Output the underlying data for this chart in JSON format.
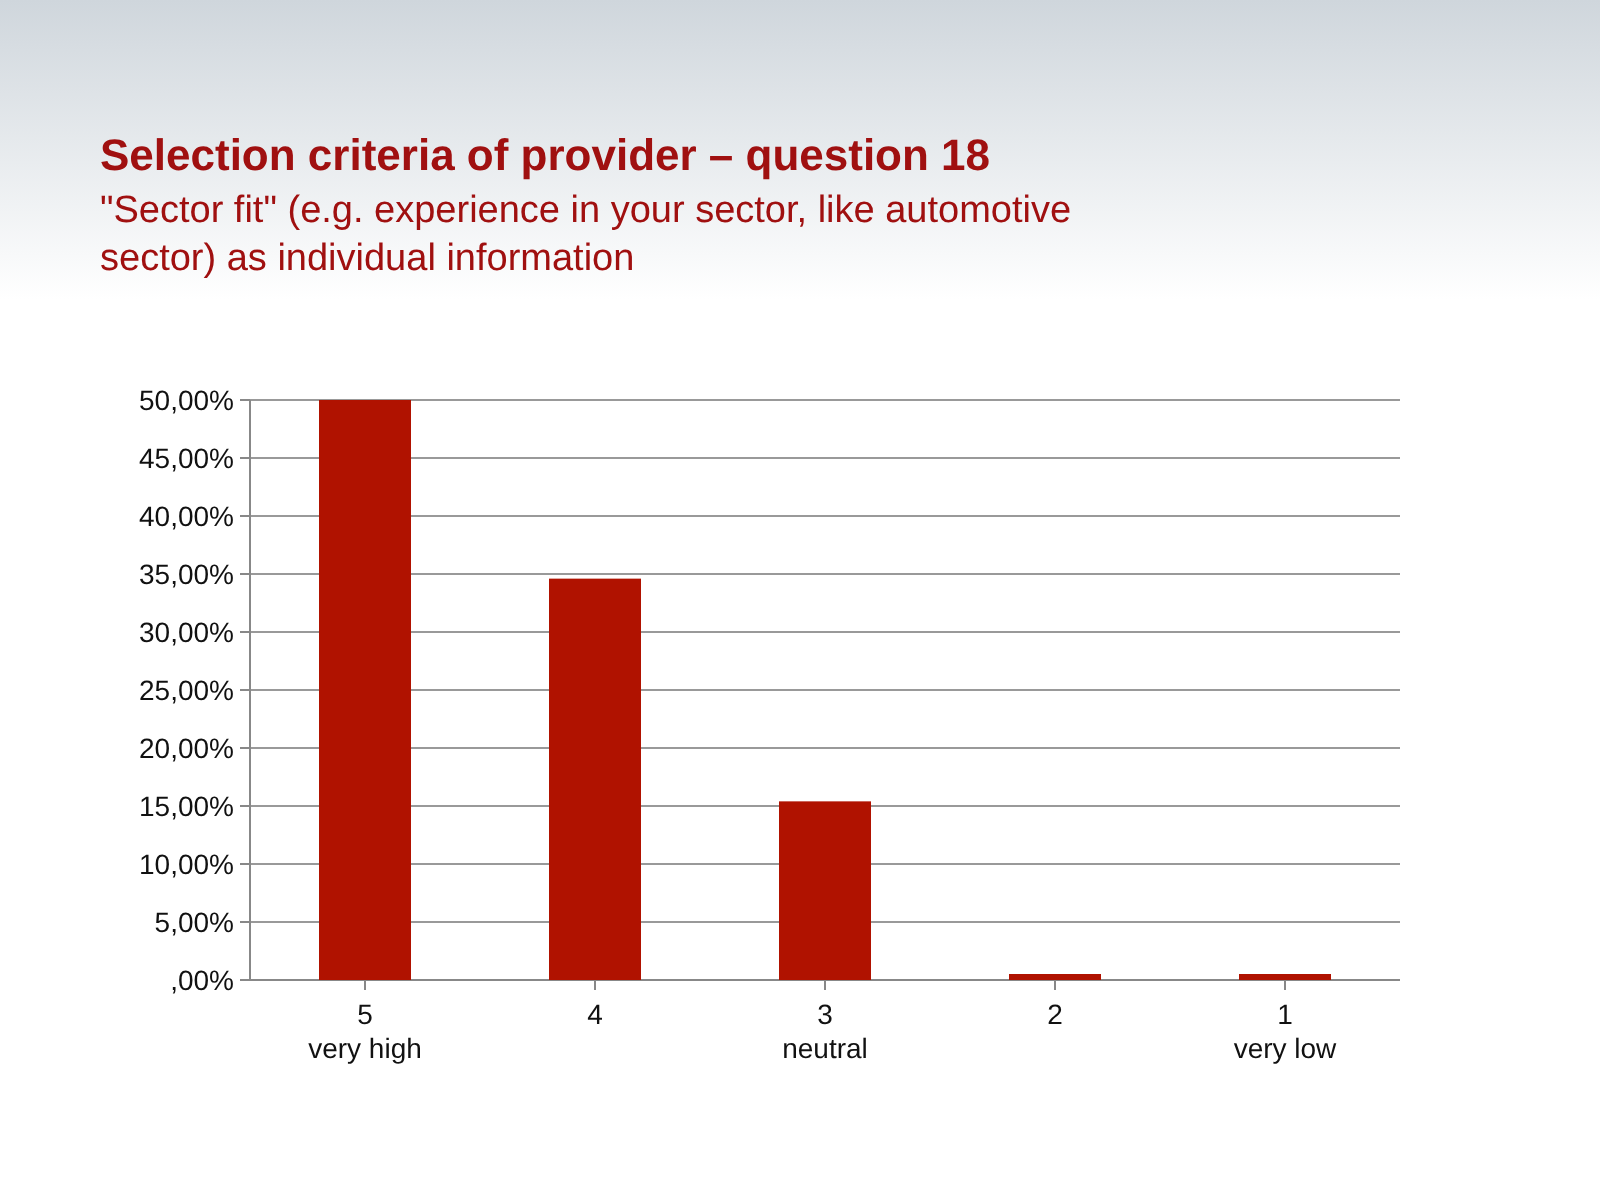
{
  "chart_data": {
    "type": "bar",
    "title": "Selection criteria of provider – question 18",
    "subtitle": "\"Sector fit\" (e.g. experience in your sector, like automotive sector) as individual information",
    "categories": [
      "5\nvery high",
      "4",
      "3\nneutral",
      "2",
      "1\nvery low"
    ],
    "values": [
      50,
      34.6,
      15.4,
      0,
      0
    ],
    "color": "#b01200",
    "ylim": [
      0,
      50
    ],
    "yticks": [
      {
        "value": 0,
        "label": ",00%"
      },
      {
        "value": 5,
        "label": "5,00%"
      },
      {
        "value": 10,
        "label": "10,00%"
      },
      {
        "value": 15,
        "label": "15,00%"
      },
      {
        "value": 20,
        "label": "20,00%"
      },
      {
        "value": 25,
        "label": "25,00%"
      },
      {
        "value": 30,
        "label": "30,00%"
      },
      {
        "value": 35,
        "label": "35,00%"
      },
      {
        "value": 40,
        "label": "40,00%"
      },
      {
        "value": 45,
        "label": "45,00%"
      },
      {
        "value": 50,
        "label": "50,00%"
      }
    ],
    "grid": "y"
  }
}
